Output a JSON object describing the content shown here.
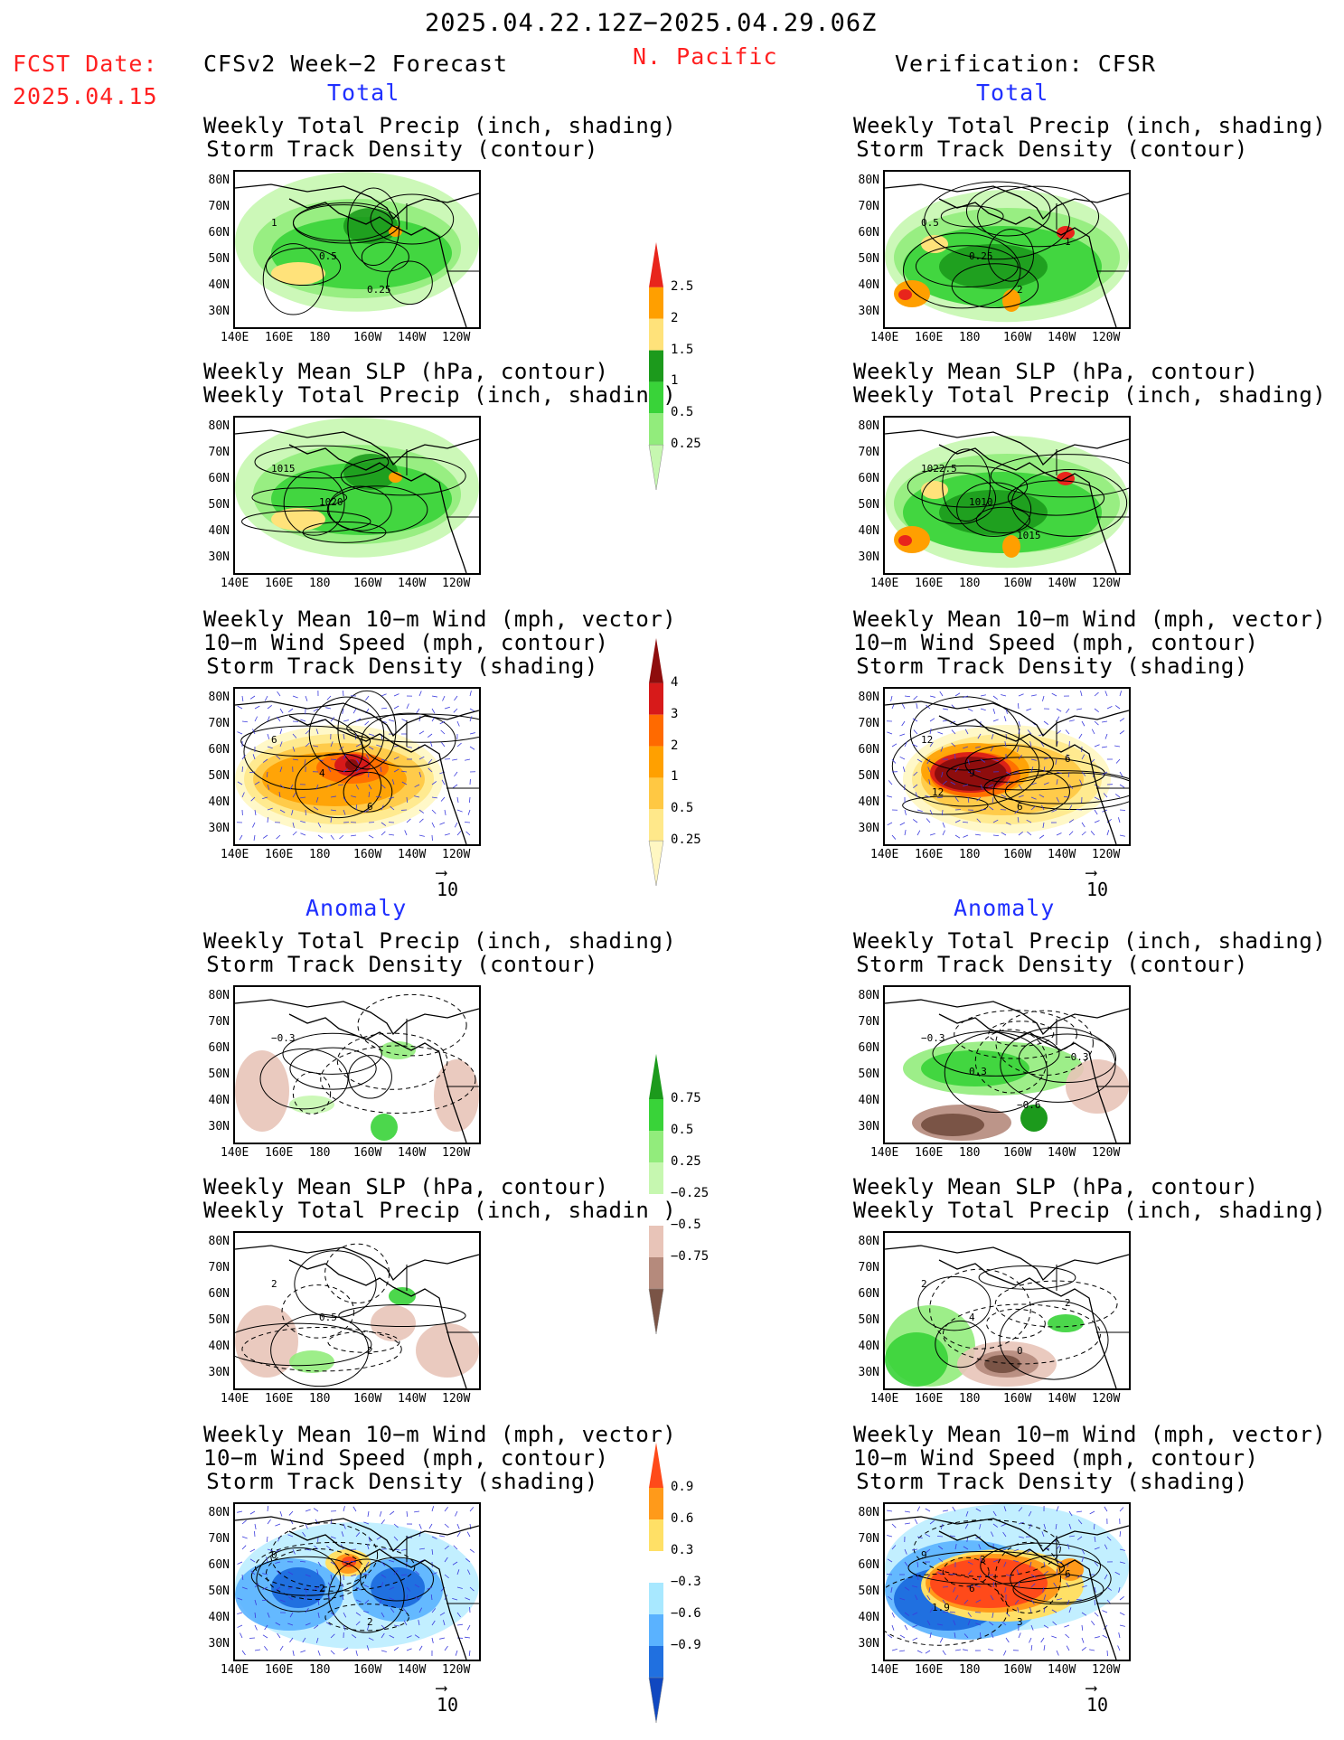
{
  "header": {
    "period": "2025.04.22.12Z−2025.04.29.06Z",
    "fcst_label": "FCST Date:",
    "fcst_date": "2025.04.15",
    "model": "CFSv2 Week−2 Forecast",
    "region": "N. Pacific",
    "verification": "Verification: CFSR"
  },
  "sections": {
    "total": "Total",
    "anomaly": "Anomaly"
  },
  "panel_titles": {
    "precip_storm": "Weekly Total Precip (inch, shading)\nStorm Track Density (contour)",
    "slp_precip": "Weekly Mean SLP (hPa, contour)\nWeekly Total Precip (inch, shading)",
    "wind_storm": "Weekly Mean 10−m Wind (mph, vector)\n10−m Wind Speed (mph, contour)\nStorm Track Density (shading)"
  },
  "axes": {
    "lat": [
      "80N",
      "70N",
      "60N",
      "50N",
      "40N",
      "30N"
    ],
    "lon": [
      "140E",
      "160E",
      "180",
      "160W",
      "140W",
      "120W"
    ]
  },
  "vector_ref": "10",
  "colorbars": {
    "precip_total": {
      "labels": [
        "2.5",
        "2",
        "1.5",
        "1",
        "0.5",
        "0.25"
      ],
      "colors": [
        "#e8251c",
        "#ff9f00",
        "#ffe27a",
        "#1c9a1c",
        "#39d339",
        "#92ec7c",
        "#c6f7b0"
      ]
    },
    "storm_total": {
      "labels": [
        "4",
        "3",
        "2",
        "1",
        "0.5",
        "0.25"
      ],
      "colors": [
        "#8e0d0d",
        "#d71a1a",
        "#ff6a00",
        "#ffa000",
        "#ffc843",
        "#ffe88a",
        "#fff7c2"
      ]
    },
    "precip_anom": {
      "labels": [
        "0.75",
        "0.5",
        "0.25",
        "−0.25",
        "−0.5",
        "−0.75"
      ],
      "colors": [
        "#1c9a1c",
        "#39d339",
        "#92ec7c",
        "#c6f7b0",
        "#ffffff",
        "#e8c4b8",
        "#b58a7c",
        "#7a5446"
      ]
    },
    "storm_anom": {
      "labels": [
        "0.9",
        "0.6",
        "0.3",
        "−0.3",
        "−0.6",
        "−0.9"
      ],
      "colors": [
        "#ff4a1a",
        "#ff9a1a",
        "#ffe066",
        "#ffffff",
        "#a8e8ff",
        "#5ab2ff",
        "#2070e0",
        "#1048c0"
      ]
    }
  },
  "map_labels": {
    "l1": [
      "1",
      "0.5",
      "0.25"
    ],
    "l2": [
      "1015",
      "1020"
    ],
    "l3": [
      "6",
      "4",
      "6"
    ],
    "r1": [
      "0.5",
      "0.25",
      "2",
      "1"
    ],
    "r2": [
      "1022.5",
      "1010",
      "1015"
    ],
    "r3": [
      "12",
      "9",
      "6",
      "6",
      "12"
    ],
    "l4": [
      "−0.3"
    ],
    "r4": [
      "−0.3",
      "0.3",
      "−0.6",
      "−0.3"
    ],
    "l5": [
      "2",
      "0.5",
      "2"
    ],
    "r5": [
      "2",
      "4",
      "0",
      "2"
    ],
    "l6": [
      "0",
      "2",
      "2"
    ],
    "r6": [
      "9",
      "6",
      "3",
      "6",
      "1.9",
      "3"
    ]
  }
}
